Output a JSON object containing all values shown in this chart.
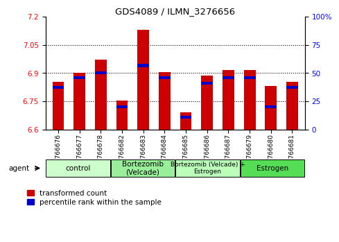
{
  "title": "GDS4089 / ILMN_3276656",
  "samples": [
    "GSM766676",
    "GSM766677",
    "GSM766678",
    "GSM766682",
    "GSM766683",
    "GSM766684",
    "GSM766685",
    "GSM766686",
    "GSM766687",
    "GSM766679",
    "GSM766680",
    "GSM766681"
  ],
  "red_values": [
    6.855,
    6.9,
    6.97,
    6.755,
    7.13,
    6.905,
    6.69,
    6.885,
    6.915,
    6.915,
    6.83,
    6.855
  ],
  "blue_values": [
    6.825,
    6.875,
    6.9,
    6.72,
    6.94,
    6.875,
    6.665,
    6.845,
    6.875,
    6.875,
    6.72,
    6.825
  ],
  "ymin": 6.6,
  "ymax": 7.2,
  "yticks_red": [
    6.6,
    6.75,
    6.9,
    7.05,
    7.2
  ],
  "yticks_blue": [
    0,
    25,
    50,
    75,
    100
  ],
  "groups": [
    {
      "label": "control",
      "start": 0,
      "end": 3,
      "color": "#ccffcc"
    },
    {
      "label": "Bortezomib\n(Velcade)",
      "start": 3,
      "end": 6,
      "color": "#99ee99"
    },
    {
      "label": "Bortezomib (Velcade) +\nEstrogen",
      "start": 6,
      "end": 9,
      "color": "#bbffbb"
    },
    {
      "label": "Estrogen",
      "start": 9,
      "end": 12,
      "color": "#55dd55"
    }
  ],
  "bar_color": "#cc0000",
  "blue_color": "#0000cc",
  "bar_width": 0.55,
  "agent_label": "agent",
  "legend_red": "transformed count",
  "legend_blue": "percentile rank within the sample"
}
